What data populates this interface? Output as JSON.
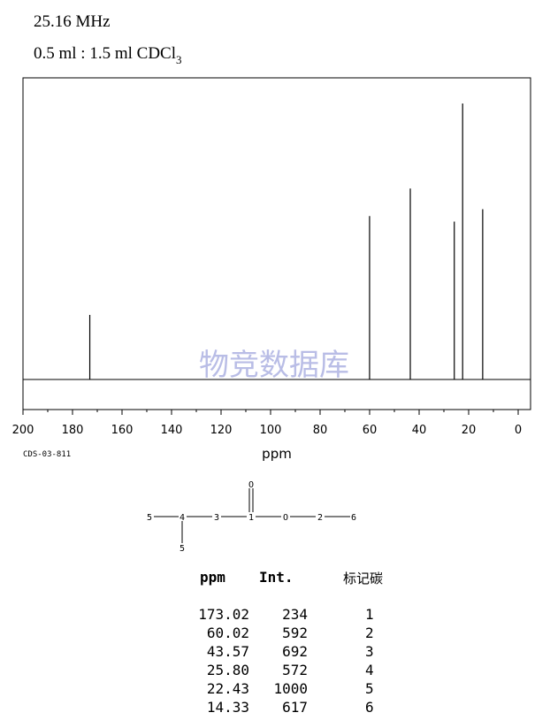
{
  "header": {
    "frequency": "25.16 MHz",
    "sample_prefix": "0.5 ml : 1.5 ml CDCl",
    "sample_subscript": "3"
  },
  "spectrum_id": "CDS-03-811",
  "watermark": "物竞数据库",
  "chart_data": {
    "type": "bar",
    "xlabel": "ppm",
    "xlim": [
      200,
      -5
    ],
    "x_ticks": [
      "200",
      "180",
      "160",
      "140",
      "120",
      "100",
      "80",
      "60",
      "40",
      "20",
      "0"
    ],
    "peaks": [
      {
        "ppm": 173.02,
        "intensity": 234
      },
      {
        "ppm": 60.02,
        "intensity": 592
      },
      {
        "ppm": 43.57,
        "intensity": 692
      },
      {
        "ppm": 25.8,
        "intensity": 572
      },
      {
        "ppm": 22.43,
        "intensity": 1000
      },
      {
        "ppm": 14.33,
        "intensity": 617
      }
    ]
  },
  "molecule": {
    "labels": [
      "5",
      "4",
      "3",
      "1",
      "O",
      "2",
      "6",
      "O",
      "5"
    ]
  },
  "table": {
    "headers": {
      "ppm": "ppm",
      "int": "Int.",
      "carbon": "标记碳"
    },
    "rows": [
      {
        "ppm": "173.02",
        "int": "234",
        "carbon": "1"
      },
      {
        "ppm": "60.02",
        "int": "592",
        "carbon": "2"
      },
      {
        "ppm": "43.57",
        "int": "692",
        "carbon": "3"
      },
      {
        "ppm": "25.80",
        "int": "572",
        "carbon": "4"
      },
      {
        "ppm": "22.43",
        "int": "1000",
        "carbon": "5"
      },
      {
        "ppm": "14.33",
        "int": "617",
        "carbon": "6"
      }
    ]
  }
}
